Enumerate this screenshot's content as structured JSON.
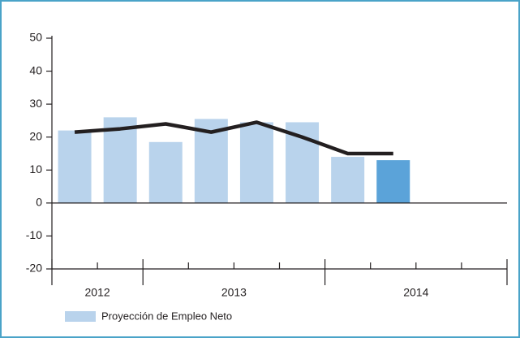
{
  "chart_data": {
    "type": "bar",
    "categories": [
      "2012",
      "2012",
      "2013",
      "2013",
      "2013",
      "2013",
      "2014",
      "2014",
      "2014",
      "2014"
    ],
    "series": [
      {
        "name": "Proyección de Empleo Neto",
        "type": "bar",
        "color": "#b9d3ec",
        "colors": [
          "#b9d3ec",
          "#b9d3ec",
          "#b9d3ec",
          "#b9d3ec",
          "#b9d3ec",
          "#b9d3ec",
          "#b9d3ec",
          "#5ba3d9",
          "#b9d3ec",
          "#b9d3ec"
        ],
        "values": [
          22,
          26,
          18.5,
          25.5,
          24.5,
          24.5,
          14,
          13,
          null,
          null
        ]
      },
      {
        "type": "line",
        "color": "#231f20",
        "values": [
          21.5,
          22.5,
          24,
          21.5,
          24.5,
          20,
          15,
          15,
          null,
          null
        ]
      }
    ],
    "ylim": [
      -20,
      50
    ],
    "yticks": [
      -20,
      -10,
      0,
      10,
      20,
      30,
      40,
      50
    ],
    "grid": false,
    "legend": "bottom-left"
  }
}
